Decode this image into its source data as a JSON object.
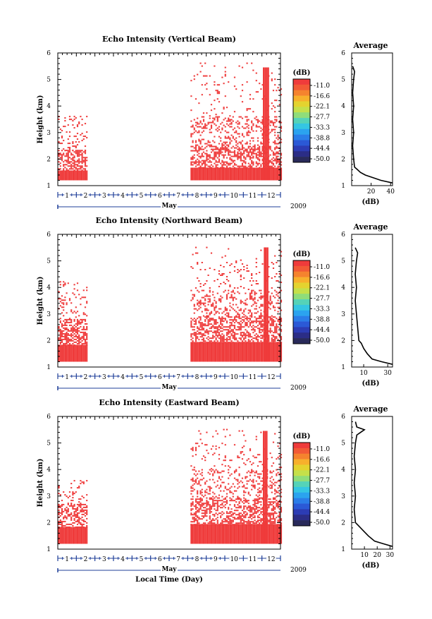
{
  "panels": [
    {
      "title": "Echo Intensity (Vertical Beam)",
      "avg_title": "Average",
      "avg_xticks": [
        "20",
        "40"
      ],
      "avg_xmax": 42,
      "profile": [
        [
          1.1,
          42
        ],
        [
          1.2,
          30
        ],
        [
          1.3,
          22
        ],
        [
          1.4,
          14
        ],
        [
          1.5,
          9
        ],
        [
          1.6,
          6
        ],
        [
          1.7,
          3
        ],
        [
          2.0,
          2
        ],
        [
          2.5,
          1
        ],
        [
          3,
          2
        ],
        [
          3.5,
          1
        ],
        [
          4,
          2
        ],
        [
          4.5,
          1
        ],
        [
          5,
          2
        ],
        [
          5.3,
          3
        ],
        [
          5.5,
          1
        ]
      ],
      "segments": [
        {
          "start": 1.02,
          "end": 2.55,
          "bands": [
            [
              1.2,
              1.55,
              1.0
            ],
            [
              1.55,
              2.3,
              0.55
            ],
            [
              2.3,
              3.6,
              0.15
            ]
          ]
        },
        {
          "start": 8.15,
          "end": 13.0,
          "bands": [
            [
              1.2,
              1.65,
              1.0
            ],
            [
              1.65,
              2.5,
              0.5
            ],
            [
              2.5,
              3.6,
              0.25
            ],
            [
              3.6,
              5.0,
              0.05
            ],
            [
              5.0,
              5.6,
              0.03
            ]
          ]
        },
        {
          "start": 12.05,
          "end": 12.35,
          "bands": [
            [
              1.2,
              5.45,
              1.0
            ]
          ]
        }
      ]
    },
    {
      "title": "Echo Intensity (Northward Beam)",
      "avg_title": "Average",
      "avg_xticks": [
        "10",
        "30"
      ],
      "avg_xmax": 34,
      "profile": [
        [
          1.1,
          34
        ],
        [
          1.2,
          25
        ],
        [
          1.3,
          17
        ],
        [
          1.5,
          13
        ],
        [
          1.7,
          10
        ],
        [
          1.9,
          8
        ],
        [
          2.0,
          6
        ],
        [
          2.5,
          5
        ],
        [
          3,
          4
        ],
        [
          3.5,
          3
        ],
        [
          4,
          4
        ],
        [
          4.5,
          3
        ],
        [
          5,
          4
        ],
        [
          5.3,
          5
        ],
        [
          5.5,
          3
        ]
      ],
      "segments": [
        {
          "start": 1.02,
          "end": 2.55,
          "bands": [
            [
              1.2,
              1.8,
              1.0
            ],
            [
              1.8,
              2.8,
              0.6
            ],
            [
              2.8,
              4.2,
              0.15
            ]
          ]
        },
        {
          "start": 8.15,
          "end": 13.0,
          "bands": [
            [
              1.2,
              1.9,
              1.0
            ],
            [
              1.9,
              2.9,
              0.5
            ],
            [
              2.9,
              3.9,
              0.25
            ],
            [
              3.9,
              5.0,
              0.08
            ],
            [
              5.0,
              5.5,
              0.03
            ]
          ]
        },
        {
          "start": 12.1,
          "end": 12.35,
          "bands": [
            [
              1.2,
              5.5,
              1.0
            ]
          ]
        }
      ]
    },
    {
      "title": "Echo Intensity (Eastward Beam)",
      "avg_title": "Average",
      "avg_xticks": [
        "10",
        "20",
        "30"
      ],
      "avg_xmax": 32,
      "profile": [
        [
          1.1,
          32
        ],
        [
          1.2,
          25
        ],
        [
          1.3,
          18
        ],
        [
          1.5,
          13
        ],
        [
          1.7,
          9
        ],
        [
          1.9,
          5
        ],
        [
          2.0,
          3
        ],
        [
          2.5,
          2
        ],
        [
          3,
          3
        ],
        [
          3.5,
          2
        ],
        [
          4,
          3
        ],
        [
          4.5,
          2
        ],
        [
          5,
          3
        ],
        [
          5.3,
          4
        ],
        [
          5.5,
          10
        ],
        [
          5.6,
          4
        ],
        [
          5.8,
          3
        ]
      ],
      "segments": [
        {
          "start": 1.02,
          "end": 2.55,
          "bands": [
            [
              1.2,
              1.8,
              1.0
            ],
            [
              1.8,
              2.7,
              0.55
            ],
            [
              2.7,
              3.6,
              0.12
            ]
          ]
        },
        {
          "start": 8.15,
          "end": 13.0,
          "bands": [
            [
              1.2,
              1.9,
              1.0
            ],
            [
              1.9,
              2.9,
              0.5
            ],
            [
              2.9,
              4.0,
              0.25
            ],
            [
              4.0,
              5.0,
              0.08
            ],
            [
              5.0,
              5.5,
              0.04
            ]
          ]
        },
        {
          "start": 12.05,
          "end": 12.3,
          "bands": [
            [
              1.2,
              5.45,
              1.0
            ]
          ]
        }
      ]
    }
  ],
  "colorbar": {
    "unit": "(dB)",
    "labels": [
      "-11.0",
      "-16.6",
      "-22.1",
      "-27.7",
      "-33.3",
      "-38.8",
      "-44.4",
      "-50.0"
    ],
    "colors": [
      "#ef3b3b",
      "#f25a36",
      "#f5832e",
      "#f7b02c",
      "#e4d32f",
      "#c5e04a",
      "#8fdd7a",
      "#55d3b8",
      "#35c6e3",
      "#2ba3ef",
      "#2b7de8",
      "#2b59d6",
      "#2c3cb4",
      "#2b2d86",
      "#292a5a"
    ]
  },
  "yticks": [
    "1",
    "2",
    "3",
    "4",
    "5",
    "6"
  ],
  "day_labels": [
    "1",
    "2",
    "3",
    "4",
    "5",
    "6",
    "7",
    "8",
    "9",
    "10",
    "11",
    "12"
  ],
  "month_label": "May",
  "year_label": "2009",
  "ylabel": "Height (km)",
  "avg_xlabel": "(dB)",
  "xlabel": "Local Time (Day)",
  "chart_data": [
    {
      "type": "heatmap",
      "title": "Echo Intensity (Vertical Beam)",
      "xlabel": "May 2009",
      "ylabel": "Height (km)",
      "x_range": [
        1,
        13
      ],
      "ylim": [
        1,
        6
      ],
      "colorbar_label": "(dB)",
      "colorbar_ticks": [
        -11.0,
        -16.6,
        -22.1,
        -27.7,
        -33.3,
        -38.8,
        -44.4,
        -50.0
      ],
      "echo_periods_day": [
        [
          1.0,
          2.55
        ],
        [
          8.15,
          13.0
        ]
      ],
      "max_echo_height_km": 5.45,
      "average_profile": {
        "x_ticks": [
          20,
          40
        ],
        "x_max": 42,
        "height_km": [
          1.1,
          1.2,
          1.3,
          1.4,
          1.5,
          1.6,
          1.7,
          2.0,
          2.5,
          3.0,
          3.5,
          4.0,
          4.5,
          5.0,
          5.3,
          5.5
        ],
        "value_db": [
          42,
          30,
          22,
          14,
          9,
          6,
          3,
          2,
          1,
          2,
          1,
          2,
          1,
          2,
          3,
          1
        ]
      }
    },
    {
      "type": "heatmap",
      "title": "Echo Intensity (Northward Beam)",
      "xlabel": "May 2009",
      "ylabel": "Height (km)",
      "x_range": [
        1,
        13
      ],
      "ylim": [
        1,
        6
      ],
      "colorbar_label": "(dB)",
      "colorbar_ticks": [
        -11.0,
        -16.6,
        -22.1,
        -27.7,
        -33.3,
        -38.8,
        -44.4,
        -50.0
      ],
      "echo_periods_day": [
        [
          1.0,
          2.55
        ],
        [
          8.15,
          13.0
        ]
      ],
      "max_echo_height_km": 5.5,
      "average_profile": {
        "x_ticks": [
          10,
          30
        ],
        "x_max": 34,
        "height_km": [
          1.1,
          1.2,
          1.3,
          1.5,
          1.7,
          1.9,
          2.0,
          2.5,
          3.0,
          3.5,
          4.0,
          4.5,
          5.0,
          5.3,
          5.5
        ],
        "value_db": [
          34,
          25,
          17,
          13,
          10,
          8,
          6,
          5,
          4,
          3,
          4,
          3,
          4,
          5,
          3
        ]
      }
    },
    {
      "type": "heatmap",
      "title": "Echo Intensity (Eastward Beam)",
      "xlabel": "Local Time (Day)",
      "ylabel": "Height (km)",
      "x_range": [
        1,
        13
      ],
      "ylim": [
        1,
        6
      ],
      "colorbar_label": "(dB)",
      "colorbar_ticks": [
        -11.0,
        -16.6,
        -22.1,
        -27.7,
        -33.3,
        -38.8,
        -44.4,
        -50.0
      ],
      "echo_periods_day": [
        [
          1.0,
          2.55
        ],
        [
          8.15,
          13.0
        ]
      ],
      "max_echo_height_km": 5.45,
      "average_profile": {
        "x_ticks": [
          10,
          20,
          30
        ],
        "x_max": 32,
        "height_km": [
          1.1,
          1.2,
          1.3,
          1.5,
          1.7,
          1.9,
          2.0,
          2.5,
          3.0,
          3.5,
          4.0,
          4.5,
          5.0,
          5.3,
          5.5,
          5.6,
          5.8
        ],
        "value_db": [
          32,
          25,
          18,
          13,
          9,
          5,
          3,
          2,
          3,
          2,
          3,
          2,
          3,
          4,
          10,
          4,
          3
        ]
      }
    }
  ]
}
